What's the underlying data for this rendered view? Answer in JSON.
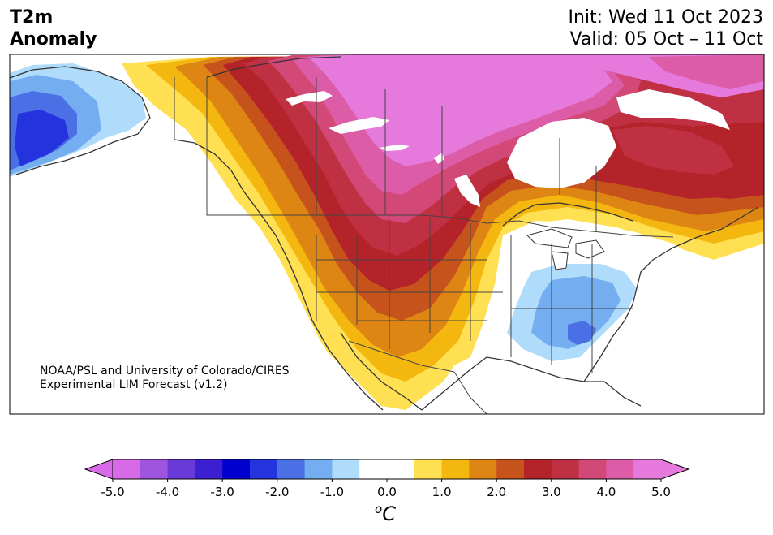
{
  "header": {
    "variable_line1": "T2m",
    "variable_line2": "Anomaly",
    "init": "Init: Wed 11 Oct 2023",
    "valid": "Valid: 05 Oct – 11 Oct"
  },
  "credit": {
    "line1": "NOAA/PSL and University of Colorado/CIRES",
    "line2": "Experimental LIM Forecast (v1.2)"
  },
  "colorbar": {
    "unit_base": "C",
    "unit_sup": "o",
    "tick_labels": [
      "-5.0",
      "-4.0",
      "-3.0",
      "-2.0",
      "-1.0",
      "0.0",
      "1.0",
      "2.0",
      "3.0",
      "4.0",
      "5.0"
    ],
    "colors": [
      "#d86ae8",
      "#9e54df",
      "#6a3ad9",
      "#3b1fd0",
      "#0000d0",
      "#2433dd",
      "#4b6fe4",
      "#74aef0",
      "#aedcfa",
      "#ffffff",
      "#ffffff",
      "#ffe052",
      "#f4b70f",
      "#de8613",
      "#c6531b",
      "#b4232a",
      "#c03043",
      "#d24876",
      "#dc5ca8",
      "#e679dc"
    ]
  },
  "map": {
    "colors": {
      "ocean": "#ffffff",
      "land_neutral": "#ffffff",
      "border": "#333333",
      "lake": "#ffffff"
    }
  }
}
